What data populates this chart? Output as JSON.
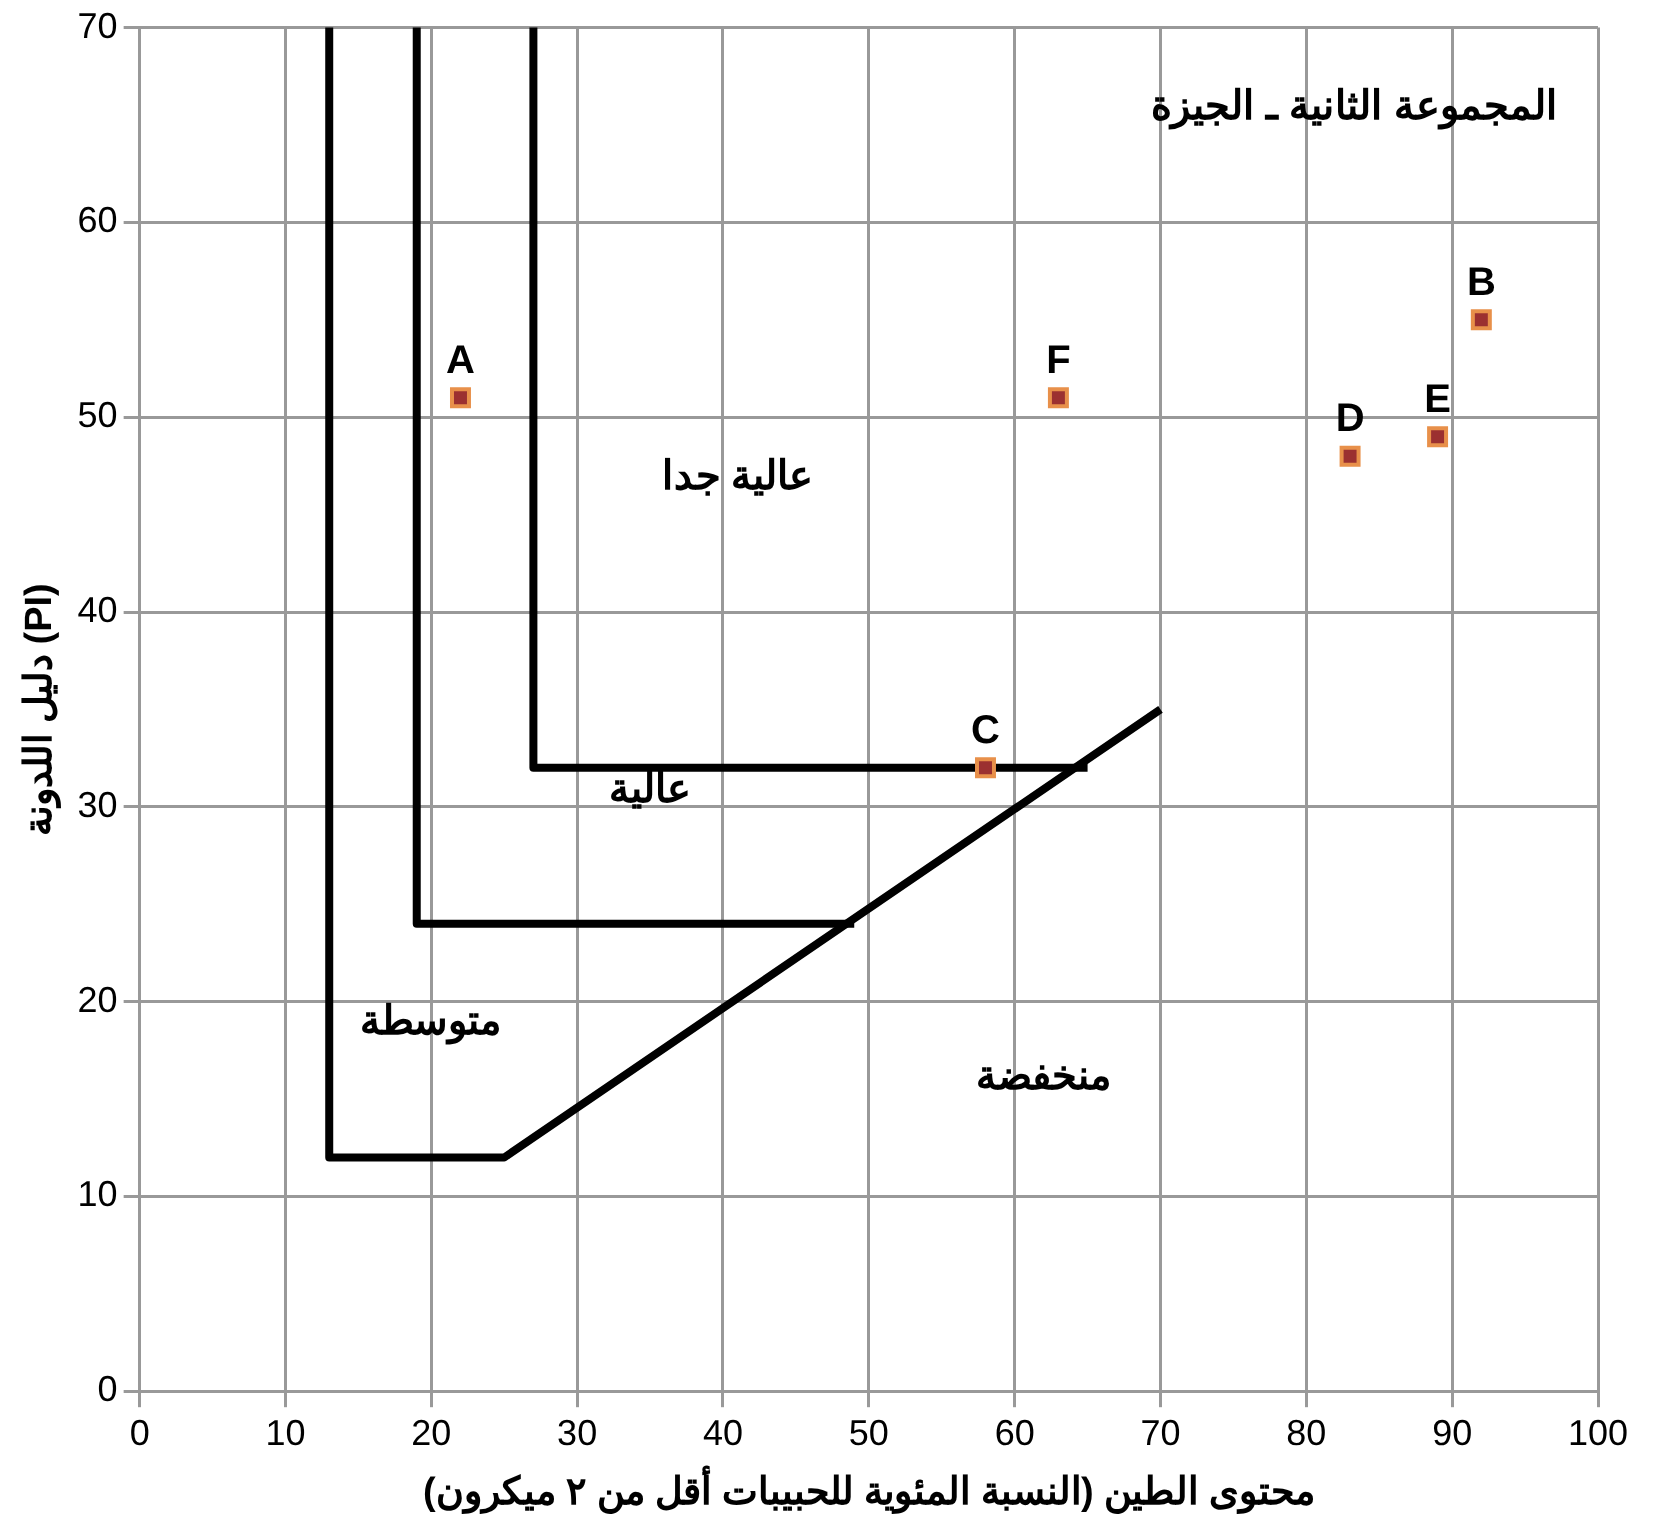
{
  "chart_data": {
    "type": "scatter",
    "title": "المجموعة الثانية ـ الجيزة",
    "xlabel": "محتوى الطين (النسبة المئوية للحبيبات أقل من ٢ ميكرون)",
    "ylabel": "دليل اللدونة (PI)",
    "xlim": [
      0,
      100
    ],
    "xticks": [
      0,
      10,
      20,
      30,
      40,
      50,
      60,
      70,
      80,
      90,
      100
    ],
    "ylim": [
      0,
      70
    ],
    "yticks": [
      0,
      10,
      20,
      30,
      40,
      50,
      60,
      70
    ],
    "grid": true,
    "series": [
      {
        "color": "#9b3030",
        "marker": "square",
        "x": [
          22,
          92,
          58,
          83,
          89,
          63
        ],
        "values": [
          51,
          55,
          32,
          48,
          49,
          51
        ]
      },
      {
        "type": "line",
        "marker": "none",
        "color": "#000000",
        "x": [
          13,
          13,
          25,
          70
        ],
        "values": [
          70,
          12,
          12,
          35
        ]
      },
      {
        "type": "line",
        "marker": "none",
        "color": "#000000",
        "x": [
          19,
          19,
          49
        ],
        "values": [
          70,
          24,
          24
        ]
      },
      {
        "type": "line",
        "marker": "none",
        "color": "#000000",
        "x": [
          27,
          27,
          65
        ],
        "values": [
          70,
          32,
          32
        ]
      }
    ],
    "annotations": [
      {
        "text": "A",
        "x": 22,
        "y": 51
      },
      {
        "text": "B",
        "x": 92,
        "y": 55
      },
      {
        "text": "C",
        "x": 58,
        "y": 32
      },
      {
        "text": "D",
        "x": 83,
        "y": 48
      },
      {
        "text": "E",
        "x": 89,
        "y": 49
      },
      {
        "text": "F",
        "x": 63,
        "y": 51
      },
      "عالية جدا",
      "عالية",
      "متوسطة",
      "منخفضة"
    ]
  }
}
